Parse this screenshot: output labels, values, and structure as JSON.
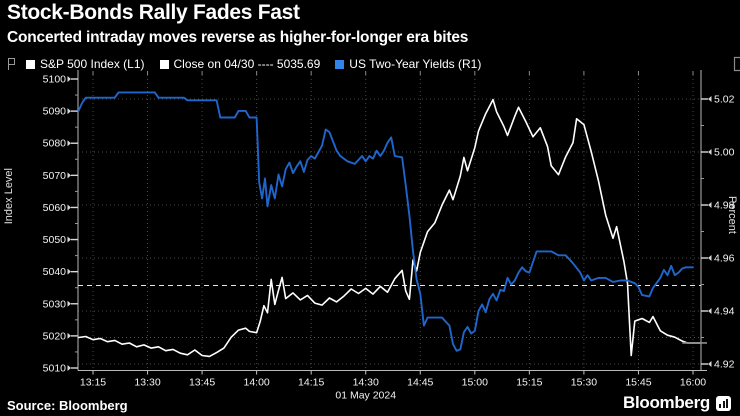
{
  "header": {
    "title": "Stock-Bonds Rally Fades Fast",
    "subtitle": "Concerted intraday moves reverse as higher-for-longer era bites"
  },
  "legend": [
    {
      "label": "S&P 500 Index (L1)",
      "color": "#ffffff"
    },
    {
      "label": "Close on 04/30 ---- 5035.69",
      "color": "#ffffff"
    },
    {
      "label": "US Two-Year Yields (R1)",
      "color": "#2f86e8"
    }
  ],
  "footer": {
    "source": "Source: Bloomberg",
    "brand": "Bloomberg"
  },
  "chart_data": {
    "type": "line",
    "title": "Stock-Bonds Rally Fades Fast",
    "x_unit": "minutes after 13:00, 01 May 2024",
    "x_ticks": [
      "13:15",
      "13:30",
      "13:45",
      "14:00",
      "14:15",
      "14:30",
      "14:45",
      "15:00",
      "15:15",
      "15:30",
      "15:45",
      "16:00"
    ],
    "x_tick_minutes": [
      15,
      30,
      45,
      60,
      75,
      90,
      105,
      120,
      135,
      150,
      165,
      180
    ],
    "x_range_minutes": [
      11,
      182
    ],
    "x_date_label": "01 May 2024",
    "grid": "dotted",
    "left_axis": {
      "label": "Index Level",
      "ticks": [
        5100,
        5090,
        5080,
        5070,
        5060,
        5050,
        5040,
        5030,
        5020,
        5010
      ],
      "range": [
        5010,
        5100
      ]
    },
    "right_axis": {
      "label": "Percent",
      "ticks": [
        5.02,
        5.0,
        4.98,
        4.96,
        4.94,
        4.92
      ],
      "range": [
        4.92,
        5.02
      ],
      "extra_dotted_level": 4.93
    },
    "close_line": {
      "label": "Close on 04/30",
      "value": 5035.69,
      "axis": "left"
    },
    "series": [
      {
        "name": "S&P 500 Index",
        "axis": "left",
        "color": "#ffffff",
        "points": [
          [
            11,
            5019.5
          ],
          [
            13,
            5019.8
          ],
          [
            15,
            5018.8
          ],
          [
            17,
            5019.2
          ],
          [
            19,
            5018.2
          ],
          [
            21,
            5018.6
          ],
          [
            23,
            5017.4
          ],
          [
            25,
            5017.8
          ],
          [
            27,
            5016.6
          ],
          [
            29,
            5017.2
          ],
          [
            31,
            5016.2
          ],
          [
            33,
            5016.6
          ],
          [
            35,
            5015.4
          ],
          [
            37,
            5015.8
          ],
          [
            39,
            5014.6
          ],
          [
            41,
            5014.1
          ],
          [
            43,
            5015.6
          ],
          [
            45,
            5013.9
          ],
          [
            47,
            5013.6
          ],
          [
            49,
            5014.8
          ],
          [
            51,
            5016.2
          ],
          [
            53,
            5019.6
          ],
          [
            55,
            5021.8
          ],
          [
            57,
            5022.4
          ],
          [
            58,
            5021.4
          ],
          [
            60,
            5021.0
          ],
          [
            61,
            5024.6
          ],
          [
            62,
            5029.4
          ],
          [
            63,
            5027.2
          ],
          [
            64,
            5037.6
          ],
          [
            65,
            5029.8
          ],
          [
            66,
            5034.2
          ],
          [
            67,
            5038.2
          ],
          [
            68,
            5031.6
          ],
          [
            70,
            5033.4
          ],
          [
            72,
            5031.2
          ],
          [
            74,
            5032.6
          ],
          [
            76,
            5030.2
          ],
          [
            78,
            5029.6
          ],
          [
            80,
            5031.8
          ],
          [
            82,
            5030.6
          ],
          [
            84,
            5032.4
          ],
          [
            86,
            5034.6
          ],
          [
            88,
            5033.2
          ],
          [
            90,
            5034.8
          ],
          [
            92,
            5033.0
          ],
          [
            94,
            5035.4
          ],
          [
            96,
            5033.6
          ],
          [
            98,
            5037.8
          ],
          [
            100,
            5040.4
          ],
          [
            101,
            5034.0
          ],
          [
            102,
            5031.4
          ],
          [
            103,
            5043.6
          ],
          [
            104,
            5040.2
          ],
          [
            105,
            5046.0
          ],
          [
            107,
            5052.4
          ],
          [
            109,
            5055.2
          ],
          [
            111,
            5060.8
          ],
          [
            113,
            5065.4
          ],
          [
            114,
            5062.4
          ],
          [
            116,
            5069.8
          ],
          [
            117,
            5075.6
          ],
          [
            118,
            5071.4
          ],
          [
            120,
            5078.6
          ],
          [
            121,
            5083.8
          ],
          [
            123,
            5089.2
          ],
          [
            125,
            5093.6
          ],
          [
            126,
            5089.8
          ],
          [
            128,
            5085.2
          ],
          [
            129,
            5082.4
          ],
          [
            131,
            5088.4
          ],
          [
            132,
            5091.2
          ],
          [
            134,
            5086.8
          ],
          [
            136,
            5082.0
          ],
          [
            138,
            5084.8
          ],
          [
            140,
            5079.0
          ],
          [
            141,
            5073.0
          ],
          [
            143,
            5070.2
          ],
          [
            145,
            5075.8
          ],
          [
            147,
            5080.2
          ],
          [
            148,
            5087.6
          ],
          [
            150,
            5085.8
          ],
          [
            152,
            5077.4
          ],
          [
            154,
            5068.2
          ],
          [
            156,
            5057.6
          ],
          [
            158,
            5050.4
          ],
          [
            159,
            5054.0
          ],
          [
            161,
            5043.2
          ],
          [
            162,
            5036.4
          ],
          [
            163,
            5013.9
          ],
          [
            164,
            5024.6
          ],
          [
            166,
            5025.4
          ],
          [
            168,
            5024.2
          ],
          [
            169,
            5026.0
          ],
          [
            171,
            5021.6
          ],
          [
            173,
            5020.2
          ],
          [
            175,
            5019.6
          ],
          [
            177,
            5018.4
          ],
          [
            178.5,
            5017.8
          ],
          [
            182,
            5017.8
          ]
        ]
      },
      {
        "name": "US Two-Year Yields",
        "axis": "right",
        "color": "#1f66cc",
        "points": [
          [
            11,
            5.0155
          ],
          [
            12,
            5.0185
          ],
          [
            13,
            5.0205
          ],
          [
            17,
            5.0205
          ],
          [
            21,
            5.0205
          ],
          [
            22,
            5.0225
          ],
          [
            26,
            5.0225
          ],
          [
            30,
            5.0225
          ],
          [
            32,
            5.0225
          ],
          [
            33,
            5.0205
          ],
          [
            37,
            5.0205
          ],
          [
            40,
            5.0205
          ],
          [
            41,
            5.0195
          ],
          [
            45,
            5.0195
          ],
          [
            49,
            5.0195
          ],
          [
            50,
            5.013
          ],
          [
            54,
            5.013
          ],
          [
            55,
            5.0155
          ],
          [
            57,
            5.0155
          ],
          [
            58,
            5.013
          ],
          [
            60,
            5.013
          ],
          [
            60.7,
            4.9885
          ],
          [
            61.5,
            4.9825
          ],
          [
            62.3,
            4.99
          ],
          [
            63,
            4.9795
          ],
          [
            64,
            4.9875
          ],
          [
            65,
            4.9825
          ],
          [
            66,
            4.9915
          ],
          [
            67,
            4.987
          ],
          [
            68,
            4.9935
          ],
          [
            69,
            4.996
          ],
          [
            70,
            4.992
          ],
          [
            71,
            4.9945
          ],
          [
            72,
            4.9965
          ],
          [
            73,
            4.9925
          ],
          [
            74,
            4.997
          ],
          [
            75,
            4.9985
          ],
          [
            76,
            4.9975
          ],
          [
            77,
            5.0
          ],
          [
            78,
            5.0025
          ],
          [
            79,
            5.0085
          ],
          [
            80,
            5.0075
          ],
          [
            81,
            5.004
          ],
          [
            82,
            5.0005
          ],
          [
            83,
            4.9985
          ],
          [
            85,
            4.9965
          ],
          [
            87,
            4.9955
          ],
          [
            88,
            4.997
          ],
          [
            89,
            4.9985
          ],
          [
            90,
            4.9965
          ],
          [
            91,
            4.9985
          ],
          [
            92,
            4.9975
          ],
          [
            93,
            5.0005
          ],
          [
            94,
            4.9985
          ],
          [
            95,
            5.0005
          ],
          [
            96,
            5.0035
          ],
          [
            97,
            5.0055
          ],
          [
            98,
            4.9985
          ],
          [
            100,
            4.998
          ],
          [
            101,
            4.9875
          ],
          [
            102,
            4.976
          ],
          [
            103,
            4.9625
          ],
          [
            104,
            4.952
          ],
          [
            105,
            4.9465
          ],
          [
            106,
            4.9345
          ],
          [
            107,
            4.9375
          ],
          [
            111,
            4.9375
          ],
          [
            112,
            4.936
          ],
          [
            113,
            4.9345
          ],
          [
            114,
            4.9275
          ],
          [
            115,
            4.925
          ],
          [
            116,
            4.9255
          ],
          [
            117,
            4.932
          ],
          [
            118,
            4.934
          ],
          [
            119,
            4.9315
          ],
          [
            120,
            4.9325
          ],
          [
            121,
            4.94
          ],
          [
            122,
            4.9425
          ],
          [
            123,
            4.9395
          ],
          [
            124,
            4.9445
          ],
          [
            125,
            4.9465
          ],
          [
            126,
            4.944
          ],
          [
            127,
            4.948
          ],
          [
            128,
            4.9475
          ],
          [
            129,
            4.9525
          ],
          [
            130,
            4.95
          ],
          [
            131,
            4.9515
          ],
          [
            132,
            4.9545
          ],
          [
            133,
            4.9565
          ],
          [
            134,
            4.955
          ],
          [
            135,
            4.9545
          ],
          [
            136,
            4.9585
          ],
          [
            137,
            4.9625
          ],
          [
            141,
            4.9625
          ],
          [
            143,
            4.961
          ],
          [
            145,
            4.961
          ],
          [
            147,
            4.958
          ],
          [
            149,
            4.9545
          ],
          [
            150,
            4.9515
          ],
          [
            151,
            4.9535
          ],
          [
            152,
            4.9515
          ],
          [
            154,
            4.9525
          ],
          [
            156,
            4.9525
          ],
          [
            158,
            4.951
          ],
          [
            160,
            4.9515
          ],
          [
            162,
            4.9515
          ],
          [
            164,
            4.9505
          ],
          [
            165,
            4.949
          ],
          [
            166,
            4.946
          ],
          [
            168,
            4.9455
          ],
          [
            169,
            4.9487
          ],
          [
            171,
            4.9525
          ],
          [
            172,
            4.9555
          ],
          [
            173,
            4.9535
          ],
          [
            174,
            4.957
          ],
          [
            175,
            4.9535
          ],
          [
            176,
            4.9545
          ],
          [
            177,
            4.956
          ],
          [
            178,
            4.9565
          ],
          [
            180,
            4.9565
          ]
        ]
      }
    ],
    "legend_position": "top"
  }
}
